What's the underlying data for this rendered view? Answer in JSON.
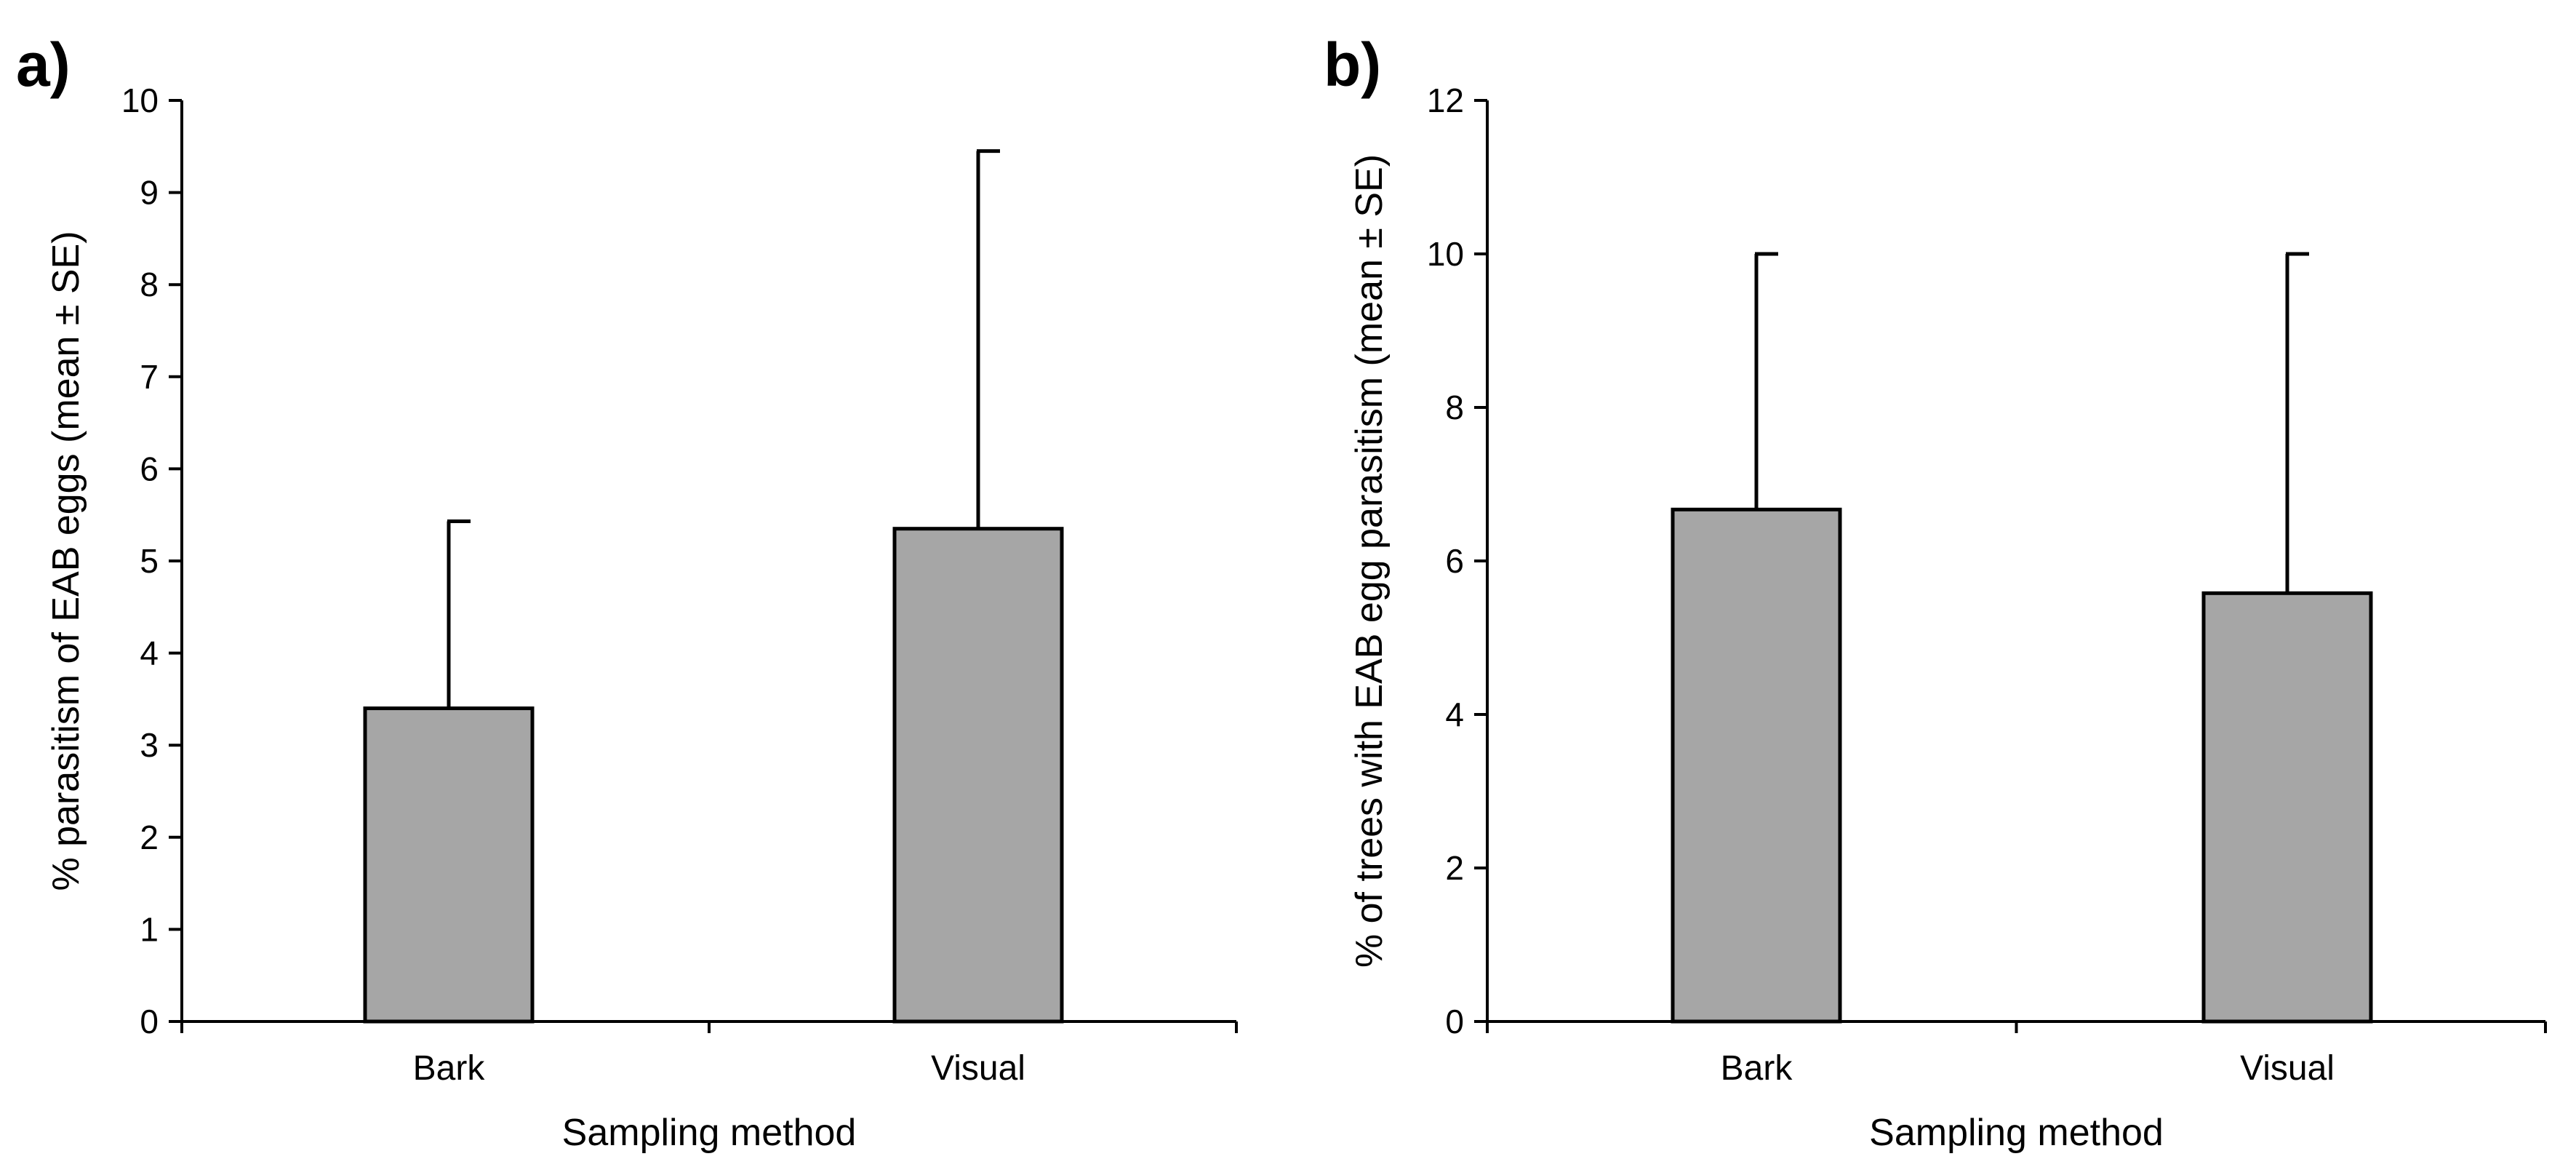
{
  "colors": {
    "bar_fill": "#a6a6a6",
    "stroke": "#000000",
    "background": "#ffffff"
  },
  "chart_data": [
    {
      "panel_label": "a)",
      "type": "bar",
      "categories": [
        "Bark",
        "Visual"
      ],
      "values": [
        3.4,
        5.35
      ],
      "error_upper": [
        5.43,
        9.45
      ],
      "xlabel": "Sampling method",
      "ylabel": "% parasitism of EAB eggs (mean ± SE)",
      "ylim": [
        0,
        10
      ],
      "yticks": [
        "0",
        "1",
        "2",
        "3",
        "4",
        "5",
        "6",
        "7",
        "8",
        "9",
        "10"
      ],
      "grid": false
    },
    {
      "panel_label": "b)",
      "type": "bar",
      "categories": [
        "Bark",
        "Visual"
      ],
      "values": [
        6.67,
        5.58
      ],
      "error_upper": [
        10.0,
        10.0
      ],
      "xlabel": "Sampling method",
      "ylabel": "% of trees with EAB egg parasitism (mean ± SE)",
      "ylim": [
        0,
        12
      ],
      "yticks": [
        "0",
        "2",
        "4",
        "6",
        "8",
        "10",
        "12"
      ],
      "grid": false
    }
  ]
}
